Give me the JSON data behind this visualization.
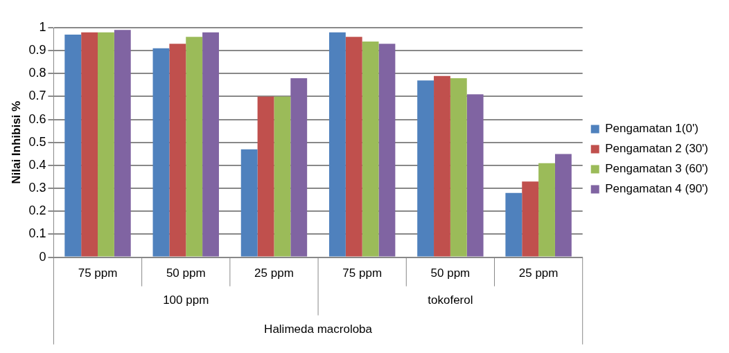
{
  "chart_data": {
    "type": "bar",
    "ylabel": "Nilai Inhibisi %",
    "categories": [
      "75 ppm",
      "50 ppm",
      "25 ppm",
      "75 ppm",
      "50 ppm",
      "25 ppm"
    ],
    "series": [
      {
        "name": "Pengamatan 1(0')",
        "color": "#4f81bd",
        "values": [
          0.97,
          0.91,
          0.47,
          0.98,
          0.77,
          0.28
        ]
      },
      {
        "name": "Pengamatan 2 (30')",
        "color": "#c0504d",
        "values": [
          0.98,
          0.93,
          0.7,
          0.96,
          0.79,
          0.33
        ]
      },
      {
        "name": "Pengamatan 3 (60')",
        "color": "#9bbb59",
        "values": [
          0.98,
          0.96,
          0.7,
          0.94,
          0.78,
          0.41
        ]
      },
      {
        "name": "Pengamatan 4 (90')",
        "color": "#8064a2",
        "values": [
          0.99,
          0.98,
          0.78,
          0.93,
          0.71,
          0.45
        ]
      }
    ],
    "ylim": [
      0,
      1
    ],
    "yticks": [
      0,
      0.1,
      0.2,
      0.3,
      0.4,
      0.5,
      0.6,
      0.7,
      0.8,
      0.9,
      1
    ],
    "grid": "y",
    "legend": "right",
    "annotations": [
      "100 ppm",
      "tokoferol",
      "Halimeda macroloba"
    ]
  }
}
